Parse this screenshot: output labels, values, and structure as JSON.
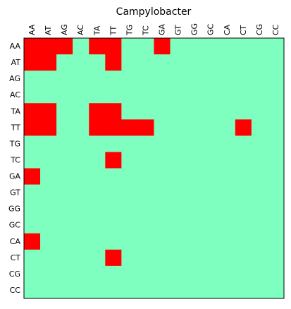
{
  "chart_data": {
    "type": "heatmap",
    "title": "Campylobacter",
    "x_labels": [
      "AA",
      "AT",
      "AG",
      "AC",
      "TA",
      "TT",
      "TG",
      "TC",
      "GA",
      "GT",
      "GG",
      "GC",
      "CA",
      "CT",
      "CG",
      "CC"
    ],
    "y_labels": [
      "AA",
      "AT",
      "AG",
      "AC",
      "TA",
      "TT",
      "TG",
      "TC",
      "GA",
      "GT",
      "GG",
      "GC",
      "CA",
      "CT",
      "CG",
      "CC"
    ],
    "x_label_position": "top",
    "grid": false,
    "colors": {
      "0": "#7fffbf",
      "1": "#ff0000"
    },
    "frame_color": "#000000",
    "values": [
      [
        1,
        1,
        1,
        0,
        1,
        1,
        0,
        0,
        1,
        0,
        0,
        0,
        0,
        0,
        0,
        0
      ],
      [
        1,
        1,
        0,
        0,
        0,
        1,
        0,
        0,
        0,
        0,
        0,
        0,
        0,
        0,
        0,
        0
      ],
      [
        0,
        0,
        0,
        0,
        0,
        0,
        0,
        0,
        0,
        0,
        0,
        0,
        0,
        0,
        0,
        0
      ],
      [
        0,
        0,
        0,
        0,
        0,
        0,
        0,
        0,
        0,
        0,
        0,
        0,
        0,
        0,
        0,
        0
      ],
      [
        1,
        1,
        0,
        0,
        1,
        1,
        0,
        0,
        0,
        0,
        0,
        0,
        0,
        0,
        0,
        0
      ],
      [
        1,
        1,
        0,
        0,
        1,
        1,
        1,
        1,
        0,
        0,
        0,
        0,
        0,
        1,
        0,
        0
      ],
      [
        0,
        0,
        0,
        0,
        0,
        0,
        0,
        0,
        0,
        0,
        0,
        0,
        0,
        0,
        0,
        0
      ],
      [
        0,
        0,
        0,
        0,
        0,
        1,
        0,
        0,
        0,
        0,
        0,
        0,
        0,
        0,
        0,
        0
      ],
      [
        1,
        0,
        0,
        0,
        0,
        0,
        0,
        0,
        0,
        0,
        0,
        0,
        0,
        0,
        0,
        0
      ],
      [
        0,
        0,
        0,
        0,
        0,
        0,
        0,
        0,
        0,
        0,
        0,
        0,
        0,
        0,
        0,
        0
      ],
      [
        0,
        0,
        0,
        0,
        0,
        0,
        0,
        0,
        0,
        0,
        0,
        0,
        0,
        0,
        0,
        0
      ],
      [
        0,
        0,
        0,
        0,
        0,
        0,
        0,
        0,
        0,
        0,
        0,
        0,
        0,
        0,
        0,
        0
      ],
      [
        1,
        0,
        0,
        0,
        0,
        0,
        0,
        0,
        0,
        0,
        0,
        0,
        0,
        0,
        0,
        0
      ],
      [
        0,
        0,
        0,
        0,
        0,
        1,
        0,
        0,
        0,
        0,
        0,
        0,
        0,
        0,
        0,
        0
      ],
      [
        0,
        0,
        0,
        0,
        0,
        0,
        0,
        0,
        0,
        0,
        0,
        0,
        0,
        0,
        0,
        0
      ],
      [
        0,
        0,
        0,
        0,
        0,
        0,
        0,
        0,
        0,
        0,
        0,
        0,
        0,
        0,
        0,
        0
      ]
    ]
  }
}
